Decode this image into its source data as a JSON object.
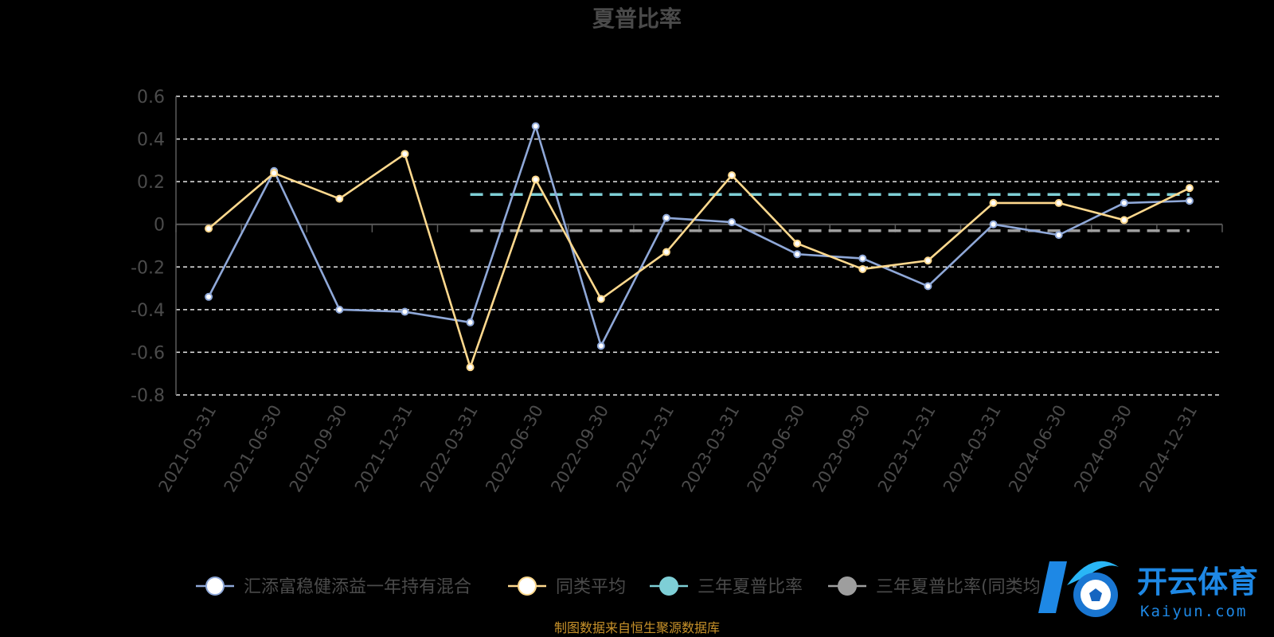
{
  "chart_data": {
    "type": "line",
    "title": "夏普比率",
    "categories": [
      "2021-03-31",
      "2021-06-30",
      "2021-09-30",
      "2021-12-31",
      "2022-03-31",
      "2022-06-30",
      "2022-09-30",
      "2022-12-31",
      "2023-03-31",
      "2023-06-30",
      "2023-09-30",
      "2023-12-31",
      "2024-03-31",
      "2024-06-30",
      "2024-09-30",
      "2024-12-31"
    ],
    "ylim": [
      -0.8,
      0.6
    ],
    "yticks": [
      "0.6",
      "0.4",
      "0.2",
      "0",
      "-0.2",
      "-0.4",
      "-0.6",
      "-0.8"
    ],
    "grid": true,
    "legend_position": "bottom",
    "series": [
      {
        "name": "汇添富稳健添益一年持有混合",
        "color": "#8fa8d8",
        "values": [
          -0.34,
          0.25,
          -0.4,
          -0.41,
          -0.46,
          0.46,
          -0.57,
          0.03,
          0.01,
          -0.14,
          -0.16,
          -0.29,
          0.0,
          -0.05,
          0.1,
          0.11
        ]
      },
      {
        "name": "同类平均",
        "color": "#ffd98e",
        "values": [
          -0.02,
          0.24,
          0.12,
          0.33,
          -0.67,
          0.21,
          -0.35,
          -0.13,
          0.23,
          -0.09,
          -0.21,
          -0.17,
          0.1,
          0.1,
          0.02,
          0.17
        ]
      },
      {
        "name": "三年夏普比率",
        "color": "#7ecfd6",
        "dashed": true,
        "value": 0.14,
        "x_start": "2022-03-31",
        "x_end": "2024-12-31"
      },
      {
        "name": "三年夏普比率(同类均",
        "color": "#9e9e9e",
        "dashed": true,
        "value": -0.03,
        "x_start": "2022-03-31",
        "x_end": "2024-12-31"
      }
    ]
  },
  "source": "制图数据来自恒生聚源数据库",
  "logo": {
    "cn": "开云体育",
    "en": "Kaiyun.com"
  }
}
